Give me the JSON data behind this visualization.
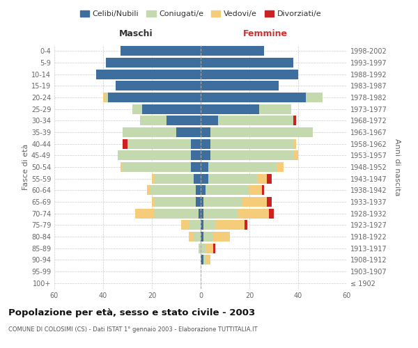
{
  "age_groups": [
    "100+",
    "95-99",
    "90-94",
    "85-89",
    "80-84",
    "75-79",
    "70-74",
    "65-69",
    "60-64",
    "55-59",
    "50-54",
    "45-49",
    "40-44",
    "35-39",
    "30-34",
    "25-29",
    "20-24",
    "15-19",
    "10-14",
    "5-9",
    "0-4"
  ],
  "birth_years": [
    "≤ 1902",
    "1903-1907",
    "1908-1912",
    "1913-1917",
    "1918-1922",
    "1923-1927",
    "1928-1932",
    "1933-1937",
    "1938-1942",
    "1943-1947",
    "1948-1952",
    "1953-1957",
    "1958-1962",
    "1963-1967",
    "1968-1972",
    "1973-1977",
    "1978-1982",
    "1983-1987",
    "1988-1992",
    "1993-1997",
    "1998-2002"
  ],
  "males": {
    "celibi": [
      0,
      0,
      0,
      0,
      0,
      0,
      1,
      2,
      2,
      3,
      4,
      4,
      4,
      10,
      14,
      24,
      38,
      35,
      43,
      39,
      33
    ],
    "coniugati": [
      0,
      0,
      0,
      1,
      3,
      5,
      18,
      17,
      19,
      16,
      28,
      30,
      26,
      22,
      11,
      4,
      1,
      0,
      0,
      0,
      0
    ],
    "vedovi": [
      0,
      0,
      0,
      0,
      2,
      3,
      8,
      1,
      1,
      1,
      1,
      0,
      0,
      0,
      0,
      0,
      1,
      0,
      0,
      0,
      0
    ],
    "divorziati": [
      0,
      0,
      0,
      0,
      0,
      0,
      0,
      0,
      0,
      0,
      0,
      0,
      2,
      0,
      0,
      0,
      0,
      0,
      0,
      0,
      0
    ]
  },
  "females": {
    "nubili": [
      0,
      0,
      1,
      0,
      1,
      1,
      1,
      1,
      2,
      3,
      3,
      4,
      4,
      4,
      7,
      24,
      43,
      32,
      40,
      38,
      26
    ],
    "coniugate": [
      0,
      0,
      1,
      2,
      4,
      5,
      14,
      16,
      18,
      20,
      28,
      34,
      34,
      42,
      31,
      13,
      7,
      0,
      0,
      0,
      0
    ],
    "vedove": [
      0,
      0,
      2,
      3,
      7,
      12,
      13,
      10,
      5,
      4,
      3,
      2,
      1,
      0,
      0,
      0,
      0,
      0,
      0,
      0,
      0
    ],
    "divorziate": [
      0,
      0,
      0,
      1,
      0,
      1,
      2,
      2,
      1,
      2,
      0,
      0,
      0,
      0,
      1,
      0,
      0,
      0,
      0,
      0,
      0
    ]
  },
  "colors": {
    "celibi": "#3d6e9e",
    "coniugati": "#c5d9ae",
    "vedovi": "#f5cc7a",
    "divorziati": "#cc2222"
  },
  "legend_labels": [
    "Celibi/Nubili",
    "Coniugati/e",
    "Vedovi/e",
    "Divorziati/e"
  ],
  "title": "Popolazione per età, sesso e stato civile - 2003",
  "subtitle": "COMUNE DI COLOSIMI (CS) - Dati ISTAT 1° gennaio 2003 - Elaborazione TUTTITALIA.IT",
  "xlabel_left": "Maschi",
  "xlabel_right": "Femmine",
  "ylabel_left": "Fasce di età",
  "ylabel_right": "Anni di nascita",
  "xlim": 60,
  "background_color": "#ffffff",
  "grid_color": "#cccccc"
}
